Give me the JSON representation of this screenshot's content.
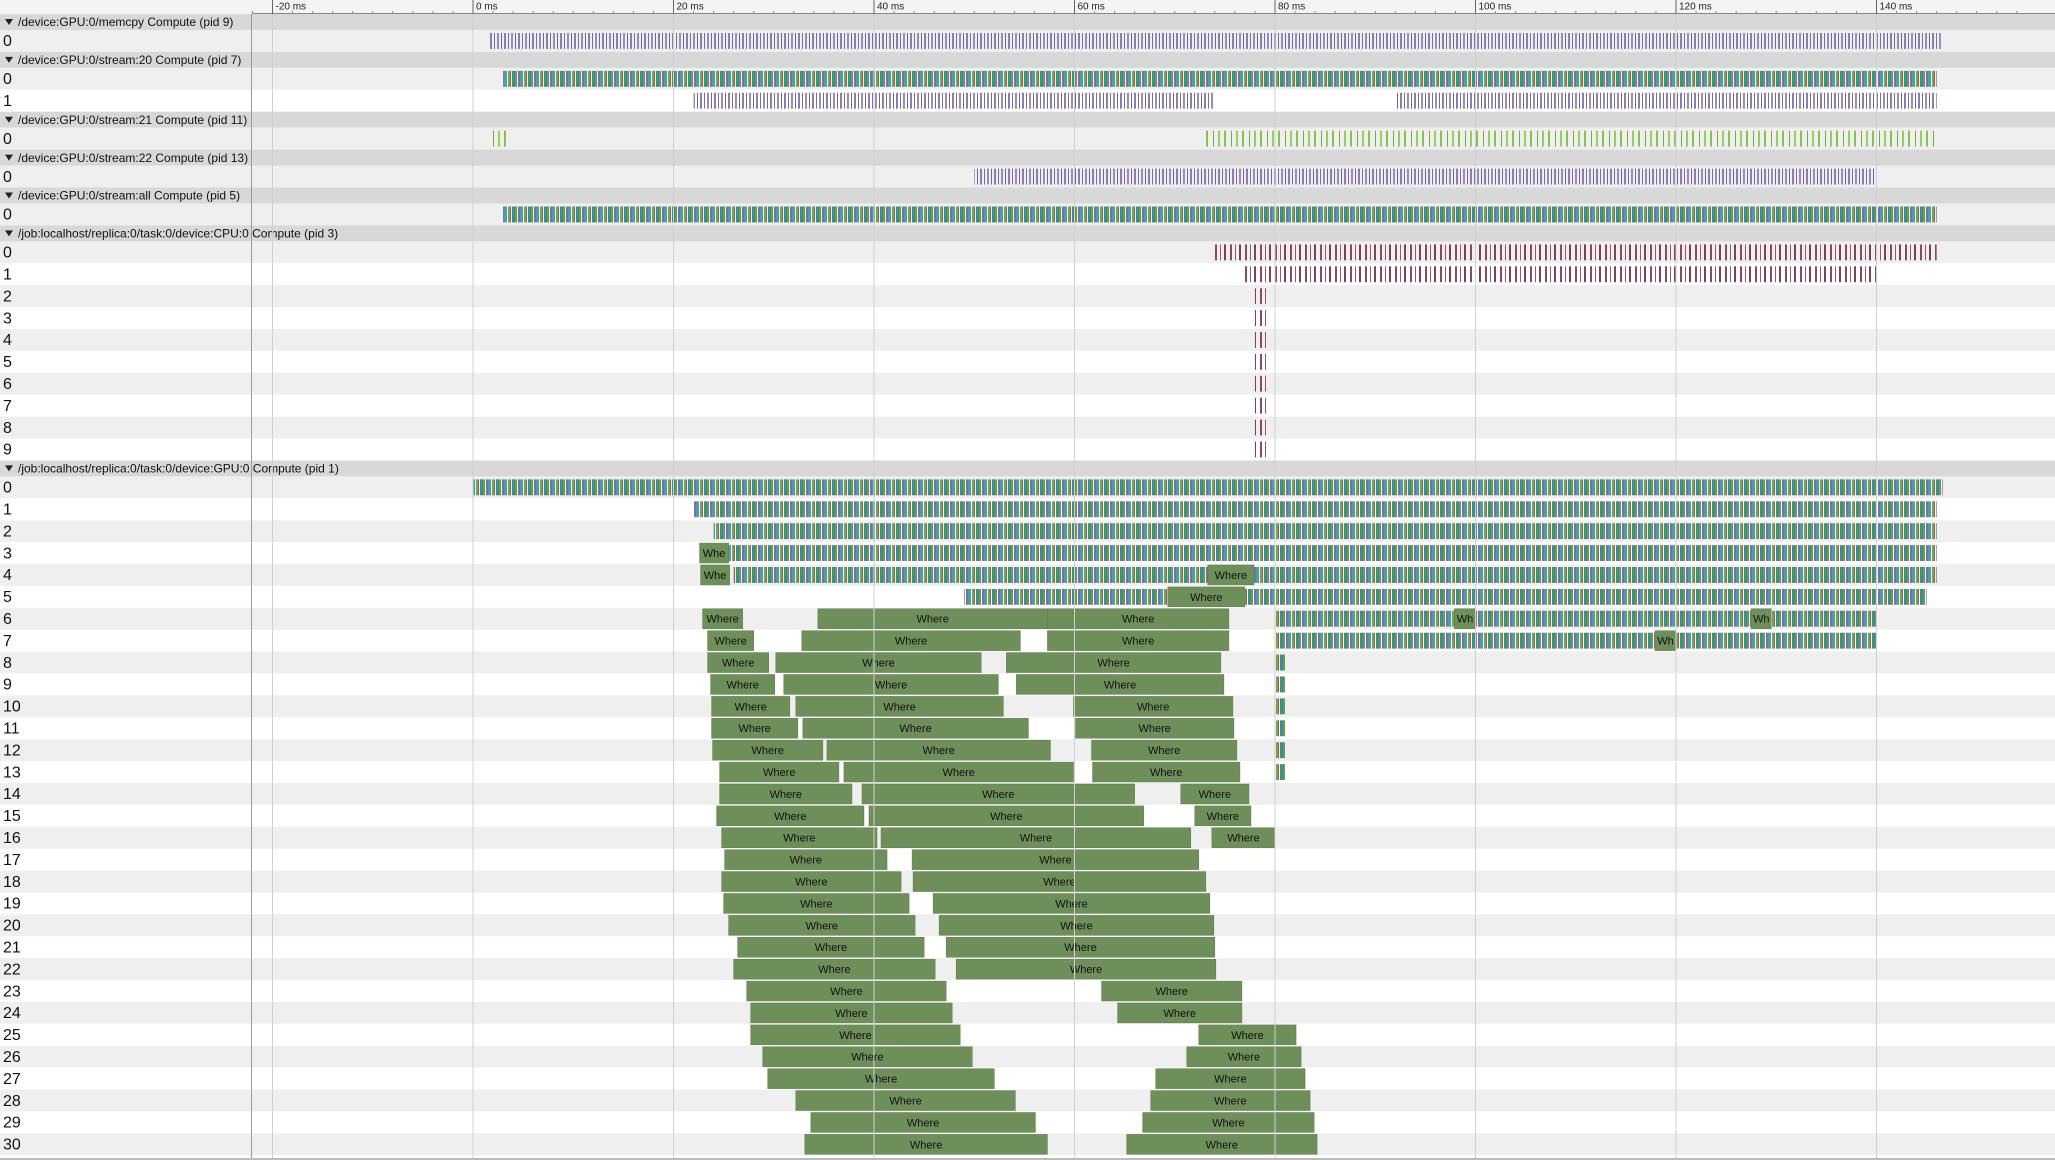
{
  "ruler": {
    "ticks": [
      {
        "value": -20,
        "label": "-20 ms"
      },
      {
        "value": 0,
        "label": "0 ms"
      },
      {
        "value": 20,
        "label": "20 ms"
      },
      {
        "value": 40,
        "label": "40 ms"
      },
      {
        "value": 60,
        "label": "60 ms"
      },
      {
        "value": 80,
        "label": "80 ms"
      },
      {
        "value": 100,
        "label": "100 ms"
      },
      {
        "value": 120,
        "label": "120 ms"
      },
      {
        "value": 140,
        "label": "140 ms"
      }
    ]
  },
  "processes": [
    {
      "name": "/device:GPU:0/memcpy Compute (pid 9)",
      "threads": [
        {
          "label": "0",
          "slices": []
        }
      ]
    },
    {
      "name": "/device:GPU:0/stream:20 Compute (pid 7)",
      "threads": [
        {
          "label": "0",
          "slices": []
        },
        {
          "label": "1",
          "slices": []
        }
      ]
    },
    {
      "name": "/device:GPU:0/stream:21 Compute (pid 11)",
      "threads": [
        {
          "label": "0",
          "slices": []
        }
      ]
    },
    {
      "name": "/device:GPU:0/stream:22 Compute (pid 13)",
      "threads": [
        {
          "label": "0",
          "slices": []
        }
      ]
    },
    {
      "name": "/device:GPU:0/stream:all Compute (pid 5)",
      "threads": [
        {
          "label": "0",
          "slices": []
        }
      ]
    },
    {
      "name": "/job:localhost/replica:0/task:0/device:CPU:0 Compute (pid 3)",
      "threads": [
        {
          "label": "0",
          "slices": []
        },
        {
          "label": "1",
          "slices": []
        },
        {
          "label": "2",
          "slices": []
        },
        {
          "label": "3",
          "slices": []
        },
        {
          "label": "4",
          "slices": []
        },
        {
          "label": "5",
          "slices": []
        },
        {
          "label": "6",
          "slices": []
        },
        {
          "label": "7",
          "slices": []
        },
        {
          "label": "8",
          "slices": []
        },
        {
          "label": "9",
          "slices": []
        }
      ]
    },
    {
      "name": "/job:localhost/replica:0/task:0/device:GPU:0 Compute (pid 1)",
      "threads": [
        {
          "label": "0",
          "slices": []
        },
        {
          "label": "1",
          "slices": []
        },
        {
          "label": "2",
          "slices": []
        },
        {
          "label": "3",
          "slices": [
            {
              "start": 22.6,
              "end": 25.5,
              "label": "Whe"
            }
          ]
        },
        {
          "label": "4",
          "slices": [
            {
              "start": 22.7,
              "end": 25.6,
              "label": "Whe"
            },
            {
              "start": 73.3,
              "end": 77.9,
              "label": "Where"
            }
          ]
        },
        {
          "label": "5",
          "slices": [
            {
              "start": 69.3,
              "end": 77.0,
              "label": "Where"
            }
          ]
        },
        {
          "label": "6",
          "slices": [
            {
              "start": 22.9,
              "end": 26.9,
              "label": "Where"
            },
            {
              "start": 34.4,
              "end": 57.3,
              "label": "Where"
            },
            {
              "start": 57.3,
              "end": 75.4,
              "label": "Where"
            },
            {
              "start": 97.9,
              "end": 100.0,
              "label": "Wh"
            },
            {
              "start": 127.5,
              "end": 129.5,
              "label": "Wh"
            }
          ]
        },
        {
          "label": "7",
          "slices": [
            {
              "start": 23.4,
              "end": 28.0,
              "label": "Where"
            },
            {
              "start": 32.8,
              "end": 54.6,
              "label": "Where"
            },
            {
              "start": 57.3,
              "end": 75.4,
              "label": "Where"
            },
            {
              "start": 117.9,
              "end": 120.0,
              "label": "Wh"
            }
          ]
        },
        {
          "label": "8",
          "slices": [
            {
              "start": 23.4,
              "end": 29.5,
              "label": "Where"
            },
            {
              "start": 30.2,
              "end": 50.7,
              "label": "Where"
            },
            {
              "start": 53.2,
              "end": 74.6,
              "label": "Where"
            }
          ]
        },
        {
          "label": "9",
          "slices": [
            {
              "start": 23.7,
              "end": 30.1,
              "label": "Where"
            },
            {
              "start": 31.0,
              "end": 52.4,
              "label": "Where"
            },
            {
              "start": 54.2,
              "end": 74.9,
              "label": "Where"
            }
          ]
        },
        {
          "label": "10",
          "slices": [
            {
              "start": 23.8,
              "end": 31.6,
              "label": "Where"
            },
            {
              "start": 32.2,
              "end": 52.9,
              "label": "Where"
            },
            {
              "start": 59.9,
              "end": 75.8,
              "label": "Where"
            }
          ]
        },
        {
          "label": "11",
          "slices": [
            {
              "start": 23.8,
              "end": 32.4,
              "label": "Where"
            },
            {
              "start": 32.9,
              "end": 55.4,
              "label": "Where"
            },
            {
              "start": 60.1,
              "end": 75.9,
              "label": "Where"
            }
          ]
        },
        {
          "label": "12",
          "slices": [
            {
              "start": 23.9,
              "end": 34.9,
              "label": "Where"
            },
            {
              "start": 35.3,
              "end": 57.6,
              "label": "Where"
            },
            {
              "start": 61.7,
              "end": 76.2,
              "label": "Where"
            }
          ]
        },
        {
          "label": "13",
          "slices": [
            {
              "start": 24.6,
              "end": 36.5,
              "label": "Where"
            },
            {
              "start": 37.0,
              "end": 59.9,
              "label": "Where"
            },
            {
              "start": 61.8,
              "end": 76.5,
              "label": "Where"
            }
          ]
        },
        {
          "label": "14",
          "slices": [
            {
              "start": 24.6,
              "end": 37.8,
              "label": "Where"
            },
            {
              "start": 38.8,
              "end": 66.0,
              "label": "Where"
            },
            {
              "start": 70.6,
              "end": 77.4,
              "label": "Where"
            }
          ]
        },
        {
          "label": "15",
          "slices": [
            {
              "start": 24.3,
              "end": 39.0,
              "label": "Where"
            },
            {
              "start": 39.5,
              "end": 66.9,
              "label": "Where"
            },
            {
              "start": 72.0,
              "end": 77.6,
              "label": "Where"
            }
          ]
        },
        {
          "label": "16",
          "slices": [
            {
              "start": 24.8,
              "end": 40.3,
              "label": "Where"
            },
            {
              "start": 40.7,
              "end": 71.6,
              "label": "Where"
            },
            {
              "start": 73.7,
              "end": 80.0,
              "label": "Where"
            }
          ]
        },
        {
          "label": "17",
          "slices": [
            {
              "start": 25.1,
              "end": 41.3,
              "label": "Where"
            },
            {
              "start": 43.8,
              "end": 72.4,
              "label": "Where"
            }
          ]
        },
        {
          "label": "18",
          "slices": [
            {
              "start": 24.8,
              "end": 42.7,
              "label": "Where"
            },
            {
              "start": 43.9,
              "end": 73.1,
              "label": "Where"
            }
          ]
        },
        {
          "label": "19",
          "slices": [
            {
              "start": 25.0,
              "end": 43.5,
              "label": "Where"
            },
            {
              "start": 45.9,
              "end": 73.5,
              "label": "Where"
            }
          ]
        },
        {
          "label": "20",
          "slices": [
            {
              "start": 25.5,
              "end": 44.1,
              "label": "Where"
            },
            {
              "start": 46.5,
              "end": 73.9,
              "label": "Where"
            }
          ]
        },
        {
          "label": "21",
          "slices": [
            {
              "start": 26.4,
              "end": 45.0,
              "label": "Where"
            },
            {
              "start": 47.2,
              "end": 74.0,
              "label": "Where"
            }
          ]
        },
        {
          "label": "22",
          "slices": [
            {
              "start": 26.0,
              "end": 46.1,
              "label": "Where"
            },
            {
              "start": 48.2,
              "end": 74.1,
              "label": "Where"
            }
          ]
        },
        {
          "label": "23",
          "slices": [
            {
              "start": 27.3,
              "end": 47.2,
              "label": "Where"
            },
            {
              "start": 62.7,
              "end": 76.7,
              "label": "Where"
            }
          ]
        },
        {
          "label": "24",
          "slices": [
            {
              "start": 27.7,
              "end": 47.8,
              "label": "Where"
            },
            {
              "start": 64.3,
              "end": 76.7,
              "label": "Where"
            }
          ]
        },
        {
          "label": "25",
          "slices": [
            {
              "start": 27.7,
              "end": 48.6,
              "label": "Where"
            },
            {
              "start": 72.4,
              "end": 82.1,
              "label": "Where"
            }
          ]
        },
        {
          "label": "26",
          "slices": [
            {
              "start": 28.9,
              "end": 49.8,
              "label": "Where"
            },
            {
              "start": 71.2,
              "end": 82.6,
              "label": "Where"
            }
          ]
        },
        {
          "label": "27",
          "slices": [
            {
              "start": 29.4,
              "end": 52.0,
              "label": "Where"
            },
            {
              "start": 68.1,
              "end": 83.0,
              "label": "Where"
            }
          ]
        },
        {
          "label": "28",
          "slices": [
            {
              "start": 32.2,
              "end": 54.1,
              "label": "Where"
            },
            {
              "start": 67.6,
              "end": 83.5,
              "label": "Where"
            }
          ]
        },
        {
          "label": "29",
          "slices": [
            {
              "start": 33.7,
              "end": 56.1,
              "label": "Where"
            },
            {
              "start": 66.8,
              "end": 83.9,
              "label": "Where"
            }
          ]
        },
        {
          "label": "30",
          "slices": [
            {
              "start": 33.1,
              "end": 57.3,
              "label": "Where"
            },
            {
              "start": 65.2,
              "end": 84.2,
              "label": "Where"
            }
          ]
        }
      ]
    }
  ]
}
